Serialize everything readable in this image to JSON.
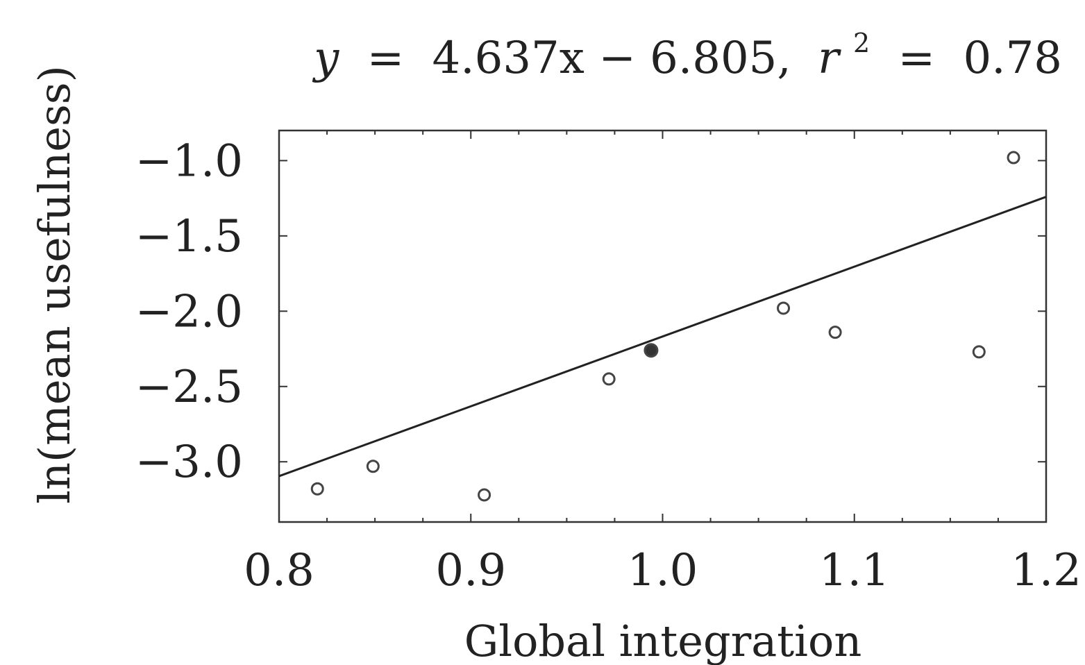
{
  "chart_data": {
    "type": "scatter",
    "title": "y = 4.637x − 6.805, r² = 0.78",
    "title_parts": {
      "lhs": "y",
      "equals1": "=",
      "formula": "4.637x − 6.805,",
      "r2_base": "r",
      "r2_exp": "2",
      "equals2": "=",
      "r2_value": "0.78"
    },
    "xlabel": "Global integration",
    "ylabel": "ln(mean usefulness)",
    "xlim": [
      0.8,
      1.2
    ],
    "ylim": [
      -3.4,
      -0.8
    ],
    "xticks": [
      "0.8",
      "0.9",
      "1.0",
      "1.1",
      "1.2"
    ],
    "yticks": [
      "−1.0",
      "−1.5",
      "−2.0",
      "−2.5",
      "−3.0"
    ],
    "fit": {
      "slope": 4.637,
      "intercept": -6.805
    },
    "points": [
      {
        "x": 0.82,
        "y": -3.18,
        "filled": false
      },
      {
        "x": 0.849,
        "y": -3.03,
        "filled": false
      },
      {
        "x": 0.907,
        "y": -3.22,
        "filled": false
      },
      {
        "x": 0.972,
        "y": -2.45,
        "filled": false
      },
      {
        "x": 0.994,
        "y": -2.26,
        "filled": true
      },
      {
        "x": 1.063,
        "y": -1.98,
        "filled": false
      },
      {
        "x": 1.09,
        "y": -2.14,
        "filled": false
      },
      {
        "x": 1.165,
        "y": -2.27,
        "filled": false
      },
      {
        "x": 1.183,
        "y": -0.98,
        "filled": false
      }
    ],
    "grid": false,
    "legend": "none"
  }
}
